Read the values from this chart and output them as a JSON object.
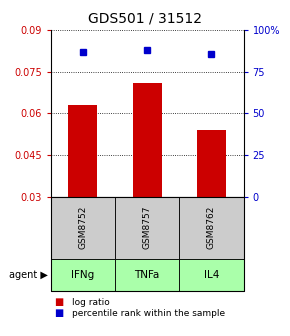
{
  "title": "GDS501 / 31512",
  "bar_values": [
    0.063,
    0.071,
    0.054
  ],
  "percentile_values": [
    87,
    88,
    86
  ],
  "sample_labels": [
    "GSM8752",
    "GSM8757",
    "GSM8762"
  ],
  "agent_labels": [
    "IFNg",
    "TNFa",
    "IL4"
  ],
  "x_positions": [
    1,
    2,
    3
  ],
  "ylim_left": [
    0.03,
    0.09
  ],
  "ylim_right": [
    0,
    100
  ],
  "yticks_left": [
    0.03,
    0.045,
    0.06,
    0.075,
    0.09
  ],
  "yticks_right": [
    0,
    25,
    50,
    75,
    100
  ],
  "ytick_labels_right": [
    "0",
    "25",
    "50",
    "75",
    "100%"
  ],
  "bar_color": "#cc0000",
  "percentile_color": "#0000cc",
  "agent_bg_color": "#aaffaa",
  "sample_bg_color": "#cccccc",
  "bar_width": 0.45,
  "legend_log_label": "log ratio",
  "legend_pct_label": "percentile rank within the sample",
  "title_fontsize": 10,
  "tick_fontsize": 7,
  "label_fontsize": 7.5
}
